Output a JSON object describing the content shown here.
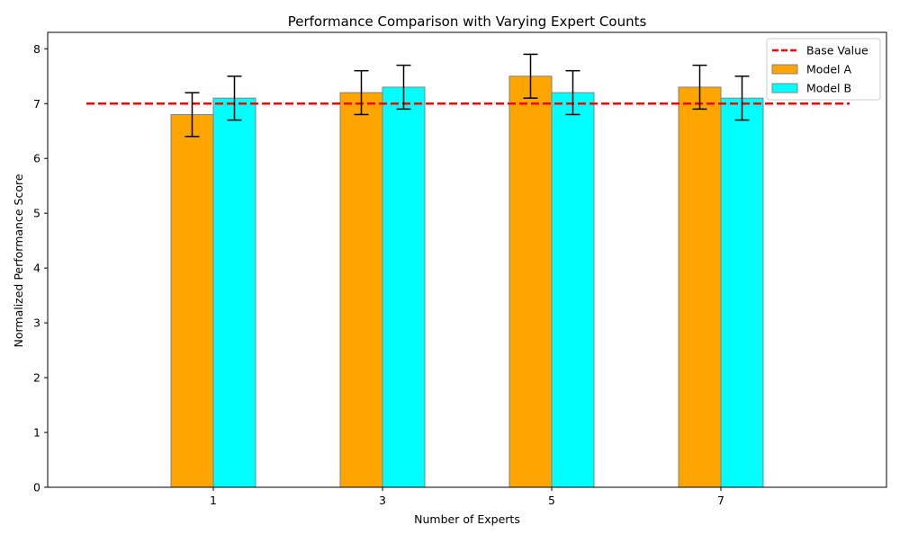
{
  "chart_data": {
    "type": "bar",
    "title": "Performance Comparison with Varying Expert Counts",
    "xlabel": "Number of Experts",
    "ylabel": "Normalized Performance Score",
    "categories": [
      "1",
      "3",
      "5",
      "7"
    ],
    "ylim": [
      0,
      8.3
    ],
    "yticks": [
      0,
      1,
      2,
      3,
      4,
      5,
      6,
      7,
      8
    ],
    "grid": false,
    "legend_position": "top-right",
    "series": [
      {
        "name": "Model A",
        "values": [
          6.8,
          7.2,
          7.5,
          7.3
        ],
        "errors": [
          0.4,
          0.4,
          0.4,
          0.4
        ],
        "color": "#ffa500"
      },
      {
        "name": "Model B",
        "values": [
          7.1,
          7.3,
          7.2,
          7.1
        ],
        "errors": [
          0.4,
          0.4,
          0.4,
          0.4
        ],
        "color": "#00ffff"
      }
    ],
    "reference_line": {
      "name": "Base Value",
      "value": 7.0,
      "color": "#ff0000",
      "style": "dashed"
    }
  }
}
